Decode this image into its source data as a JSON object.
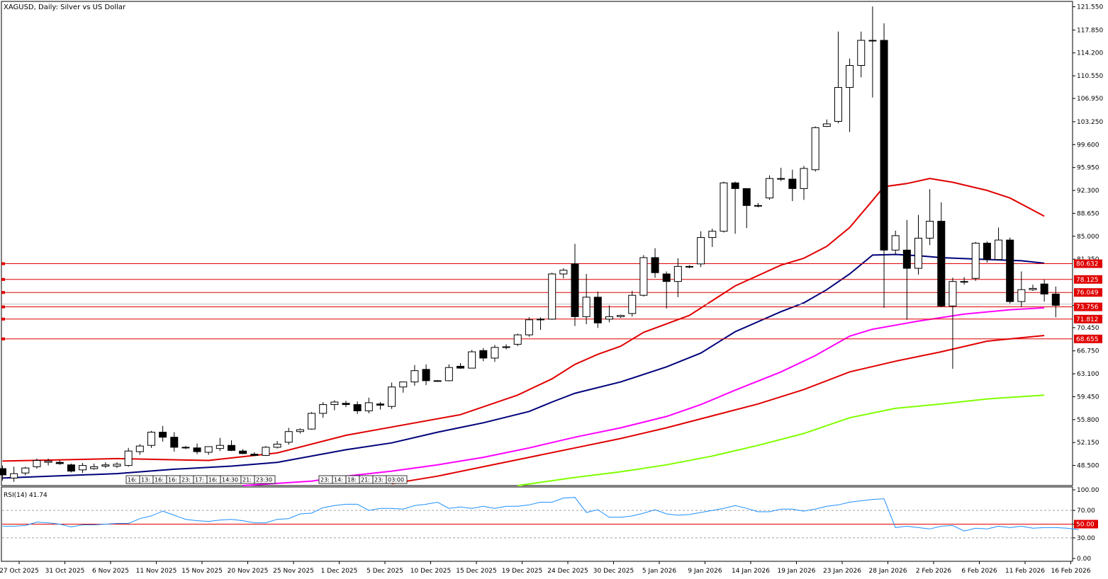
{
  "window": {
    "symbol_title": "XAGUSD, Daily:  Silver vs US Dollar",
    "rsi_title": "RSI(14) 41.74"
  },
  "chart_data": [
    {
      "type": "candlestick",
      "price_axis": {
        "range": [
          45.3,
          122.4
        ],
        "ticks": [
          "121.550",
          "117.850",
          "114.200",
          "110.550",
          "106.950",
          "103.250",
          "99.600",
          "95.950",
          "92.300",
          "88.650",
          "85.000",
          "81.350",
          "78.125",
          "76.049",
          "74.000",
          "70.450",
          "66.750",
          "63.100",
          "59.450",
          "55.800",
          "52.150",
          "48.500"
        ]
      },
      "x_ticks": [
        "27 Oct 2025",
        "31 Oct 2025",
        "6 Nov 2025",
        "11 Nov 2025",
        "15 Nov 2025",
        "20 Nov 2025",
        "25 Nov 2025",
        "1 Dec 2025",
        "5 Dec 2025",
        "10 Dec 2025",
        "15 Dec 2025",
        "19 Dec 2025",
        "24 Dec 2025",
        "30 Dec 2025",
        "5 Jan 2026",
        "9 Jan 2026",
        "14 Jan 2026",
        "19 Jan 2026",
        "23 Jan 2026",
        "28 Jan 2026",
        "2 Feb 2026",
        "6 Feb 2026",
        "11 Feb 2026",
        "16 Feb 2026"
      ],
      "candles": [
        [
          48.0,
          48.5,
          46.1,
          47.0
        ],
        [
          46.5,
          48.3,
          45.9,
          47.2
        ],
        [
          47.3,
          48.3,
          46.9,
          48.1
        ],
        [
          48.3,
          49.6,
          48.0,
          49.3
        ],
        [
          49.0,
          49.6,
          48.5,
          49.2
        ],
        [
          49.0,
          49.3,
          48.6,
          48.8
        ],
        [
          48.6,
          48.8,
          47.4,
          47.6
        ],
        [
          47.8,
          48.9,
          47.3,
          48.5
        ],
        [
          48.0,
          48.8,
          47.8,
          48.3
        ],
        [
          48.4,
          49.0,
          48.1,
          48.6
        ],
        [
          48.4,
          49.0,
          48.1,
          48.7
        ],
        [
          48.5,
          51.3,
          48.3,
          50.8
        ],
        [
          50.7,
          51.9,
          50.2,
          51.6
        ],
        [
          51.7,
          54.0,
          51.3,
          53.8
        ],
        [
          53.8,
          54.8,
          52.3,
          53.0
        ],
        [
          53.0,
          53.8,
          50.7,
          51.4
        ],
        [
          51.4,
          51.6,
          51.1,
          51.3
        ],
        [
          51.3,
          52.0,
          50.3,
          50.7
        ],
        [
          50.6,
          51.4,
          50.2,
          51.5
        ],
        [
          51.2,
          52.9,
          50.8,
          51.7
        ],
        [
          51.7,
          52.5,
          50.8,
          50.9
        ],
        [
          50.8,
          51.1,
          50.3,
          50.4
        ],
        [
          50.3,
          50.6,
          50.0,
          50.1
        ],
        [
          50.1,
          51.6,
          50.0,
          51.4
        ],
        [
          51.4,
          52.4,
          51.2,
          51.9
        ],
        [
          52.2,
          54.5,
          51.8,
          53.9
        ],
        [
          53.9,
          54.4,
          53.6,
          54.2
        ],
        [
          54.3,
          57.0,
          54.2,
          56.8
        ],
        [
          56.8,
          58.6,
          56.1,
          58.2
        ],
        [
          58.2,
          58.9,
          57.3,
          58.6
        ],
        [
          58.4,
          58.8,
          57.8,
          58.2
        ],
        [
          58.2,
          58.7,
          56.7,
          57.2
        ],
        [
          57.2,
          59.3,
          56.8,
          58.5
        ],
        [
          58.3,
          58.6,
          57.4,
          58.1
        ],
        [
          57.9,
          61.7,
          57.5,
          61.0
        ],
        [
          61.0,
          61.7,
          60.1,
          61.8
        ],
        [
          61.8,
          64.5,
          61.2,
          63.6
        ],
        [
          63.8,
          64.6,
          61.3,
          62.0
        ],
        [
          62.0,
          62.1,
          61.9,
          62.0
        ],
        [
          62.0,
          64.6,
          61.9,
          64.1
        ],
        [
          64.3,
          64.8,
          63.9,
          64.0
        ],
        [
          64.0,
          66.9,
          64.0,
          66.6
        ],
        [
          66.8,
          67.2,
          65.1,
          65.6
        ],
        [
          65.6,
          67.7,
          65.0,
          67.3
        ],
        [
          67.4,
          67.8,
          67.0,
          67.4
        ],
        [
          67.8,
          69.5,
          67.5,
          69.3
        ],
        [
          69.3,
          72.1,
          69.0,
          71.7
        ],
        [
          71.7,
          72.1,
          70.1,
          71.8
        ],
        [
          71.8,
          79.2,
          71.7,
          79.0
        ],
        [
          79.0,
          79.9,
          78.3,
          79.6
        ],
        [
          80.6,
          83.8,
          70.7,
          72.2
        ],
        [
          72.2,
          79.0,
          71.0,
          75.3
        ],
        [
          75.3,
          76.2,
          70.4,
          71.2
        ],
        [
          71.8,
          74.0,
          71.3,
          72.2
        ],
        [
          72.2,
          72.5,
          72.0,
          72.4
        ],
        [
          72.7,
          76.3,
          72.2,
          75.6
        ],
        [
          75.6,
          82.0,
          75.4,
          81.6
        ],
        [
          81.6,
          83.1,
          78.4,
          79.2
        ],
        [
          79.0,
          79.4,
          73.5,
          77.8
        ],
        [
          77.8,
          81.5,
          75.3,
          80.2
        ],
        [
          80.2,
          80.4,
          79.9,
          80.1
        ],
        [
          80.6,
          85.8,
          80.1,
          84.8
        ],
        [
          84.8,
          86.2,
          83.3,
          85.8
        ],
        [
          85.8,
          93.7,
          85.6,
          93.5
        ],
        [
          93.5,
          93.7,
          85.4,
          92.6
        ],
        [
          92.6,
          92.6,
          86.3,
          89.9
        ],
        [
          89.8,
          90.3,
          89.6,
          89.9
        ],
        [
          91.1,
          94.7,
          90.8,
          94.2
        ],
        [
          94.2,
          95.9,
          93.8,
          94.1
        ],
        [
          94.1,
          95.6,
          90.6,
          92.6
        ],
        [
          92.6,
          96.2,
          90.8,
          95.8
        ],
        [
          95.6,
          102.5,
          95.3,
          102.3
        ],
        [
          102.5,
          103.6,
          102.4,
          102.9
        ],
        [
          103.3,
          117.6,
          103.0,
          108.7
        ],
        [
          108.7,
          113.3,
          101.6,
          112.2
        ],
        [
          112.2,
          117.6,
          110.3,
          116.2
        ],
        [
          116.2,
          121.6,
          107.1,
          116.2
        ],
        [
          116.2,
          118.9,
          73.6,
          82.8
        ],
        [
          82.8,
          85.9,
          82.1,
          85.1
        ],
        [
          82.8,
          87.6,
          71.7,
          79.9
        ],
        [
          79.9,
          88.4,
          78.9,
          84.7
        ],
        [
          84.7,
          92.5,
          83.6,
          87.4
        ],
        [
          87.4,
          90.4,
          73.7,
          73.9
        ],
        [
          73.9,
          78.4,
          63.9,
          77.8
        ],
        [
          77.8,
          78.5,
          77.3,
          77.8
        ],
        [
          78.3,
          84.1,
          77.9,
          83.9
        ],
        [
          83.9,
          84.2,
          80.8,
          81.3
        ],
        [
          81.3,
          86.4,
          81.2,
          84.4
        ],
        [
          84.4,
          84.8,
          74.3,
          74.6
        ],
        [
          74.6,
          79.4,
          73.7,
          76.5
        ],
        [
          76.5,
          77.3,
          76.3,
          76.7
        ],
        [
          77.4,
          78.1,
          74.6,
          75.8
        ],
        [
          75.8,
          77.0,
          72.1,
          74.0
        ]
      ],
      "moving_averages": [
        {
          "color": "#e00000",
          "points": [
            [
              0,
              49.2
            ],
            [
              10,
              49.6
            ],
            [
              18,
              49.3
            ],
            [
              24,
              50.5
            ],
            [
              30,
              53.3
            ],
            [
              40,
              56.6
            ],
            [
              45,
              59.7
            ],
            [
              48,
              62.3
            ],
            [
              50,
              64.6
            ],
            [
              52,
              66.2
            ],
            [
              54,
              67.5
            ],
            [
              56,
              69.7
            ],
            [
              60,
              72.4
            ],
            [
              64,
              77.1
            ],
            [
              68,
              80.4
            ],
            [
              70,
              81.5
            ],
            [
              72,
              83.4
            ],
            [
              74,
              86.4
            ],
            [
              76,
              90.7
            ],
            [
              77,
              92.9
            ],
            [
              79,
              93.4
            ],
            [
              81,
              94.2
            ],
            [
              83,
              93.6
            ],
            [
              86,
              92.3
            ],
            [
              88,
              91.1
            ],
            [
              91,
              88.2
            ]
          ]
        },
        {
          "color": "#00007a",
          "points": [
            [
              0,
              46.5
            ],
            [
              10,
              47.2
            ],
            [
              15,
              47.9
            ],
            [
              20,
              48.4
            ],
            [
              24,
              49.0
            ],
            [
              30,
              51.0
            ],
            [
              34,
              52.1
            ],
            [
              38,
              53.8
            ],
            [
              42,
              55.3
            ],
            [
              46,
              57.1
            ],
            [
              48,
              58.6
            ],
            [
              50,
              60.0
            ],
            [
              54,
              61.8
            ],
            [
              58,
              64.2
            ],
            [
              61,
              66.4
            ],
            [
              64,
              69.8
            ],
            [
              68,
              73.0
            ],
            [
              70,
              74.4
            ],
            [
              72,
              76.5
            ],
            [
              74,
              79.0
            ],
            [
              76,
              82.0
            ],
            [
              78,
              82.1
            ],
            [
              80,
              81.9
            ],
            [
              82,
              81.6
            ],
            [
              86,
              81.3
            ],
            [
              89,
              81.1
            ],
            [
              91,
              80.7
            ]
          ]
        },
        {
          "color": "#ff00ff",
          "points": [
            [
              21,
              44.8
            ],
            [
              27,
              46.0
            ],
            [
              30,
              46.8
            ],
            [
              34,
              47.6
            ],
            [
              38,
              48.6
            ],
            [
              42,
              49.8
            ],
            [
              46,
              51.3
            ],
            [
              50,
              53.0
            ],
            [
              54,
              54.5
            ],
            [
              58,
              56.3
            ],
            [
              61,
              58.2
            ],
            [
              64,
              60.5
            ],
            [
              68,
              63.4
            ],
            [
              71,
              66.0
            ],
            [
              74,
              69.1
            ],
            [
              76,
              70.2
            ],
            [
              80,
              71.5
            ],
            [
              84,
              72.6
            ],
            [
              88,
              73.3
            ],
            [
              91,
              73.6
            ]
          ]
        },
        {
          "color": "#e00000",
          "points": [
            [
              34,
              45.6
            ],
            [
              38,
              46.8
            ],
            [
              42,
              48.3
            ],
            [
              46,
              49.8
            ],
            [
              50,
              51.3
            ],
            [
              54,
              52.8
            ],
            [
              58,
              54.5
            ],
            [
              62,
              56.4
            ],
            [
              66,
              58.3
            ],
            [
              70,
              60.6
            ],
            [
              74,
              63.4
            ],
            [
              78,
              65.1
            ],
            [
              82,
              66.6
            ],
            [
              86,
              68.3
            ],
            [
              91,
              69.2
            ]
          ]
        },
        {
          "color": "#80ff00",
          "points": [
            [
              45,
              45.3
            ],
            [
              50,
              46.6
            ],
            [
              54,
              47.5
            ],
            [
              58,
              48.6
            ],
            [
              62,
              50.0
            ],
            [
              66,
              51.7
            ],
            [
              70,
              53.6
            ],
            [
              74,
              56.1
            ],
            [
              78,
              57.6
            ],
            [
              82,
              58.3
            ],
            [
              86,
              59.1
            ],
            [
              91,
              59.7
            ]
          ]
        }
      ],
      "levels": [
        {
          "label": "80.632",
          "value": 80.632,
          "color": "#e00000"
        },
        {
          "label": "78.125",
          "value": 78.125,
          "color": "#e00000"
        },
        {
          "label": "76.049",
          "value": 76.049,
          "color": "#e00000"
        },
        {
          "label": "73.756",
          "value": 73.756,
          "color": "#e00000"
        },
        {
          "label": "71.812",
          "value": 71.812,
          "color": "#e00000"
        },
        {
          "label": "68.655",
          "value": 68.655,
          "color": "#e00000"
        }
      ],
      "bid_line": {
        "value": 74.2,
        "color": "#c0c0c0"
      },
      "event_labels_1": [
        "16:",
        "13:",
        "16:",
        "16:",
        "23:",
        "17:",
        "16:",
        "14:30",
        "21:",
        "23:30"
      ],
      "event_labels_2": [
        "23:",
        "14:",
        "18:",
        "21:",
        "23:",
        "03:00"
      ]
    },
    {
      "type": "line",
      "title": "RSI(14) 41.74",
      "range": [
        0,
        100
      ],
      "ticks": [
        "100.00",
        "70.00",
        "50.00",
        "30.00",
        "0.00"
      ],
      "levels": [
        {
          "value": 70,
          "style": "dashed"
        },
        {
          "value": 50,
          "style": "solid",
          "color": "#e00000",
          "label": "50.00"
        },
        {
          "value": 30,
          "style": "dashed"
        }
      ],
      "values": [
        47,
        47,
        48,
        53,
        52,
        50,
        46,
        49,
        49,
        50,
        51,
        51,
        58,
        62,
        69,
        63,
        57,
        55,
        54,
        56,
        57,
        55,
        52,
        52,
        57,
        58,
        65,
        66,
        74,
        77,
        79,
        79,
        70,
        73,
        73,
        72,
        77,
        79,
        82,
        73,
        75,
        73,
        76,
        73,
        76,
        76,
        78,
        82,
        82,
        88,
        89,
        67,
        71,
        60,
        60,
        62,
        66,
        71,
        65,
        63,
        64,
        67,
        70,
        73,
        77,
        73,
        68,
        68,
        72,
        72,
        69,
        72,
        76,
        78,
        82,
        84,
        86,
        87,
        45,
        47,
        45,
        43,
        47,
        48,
        40,
        44,
        43,
        47,
        45,
        47,
        44,
        45,
        45,
        44,
        42
      ],
      "line_color": "#1e90ff"
    }
  ]
}
